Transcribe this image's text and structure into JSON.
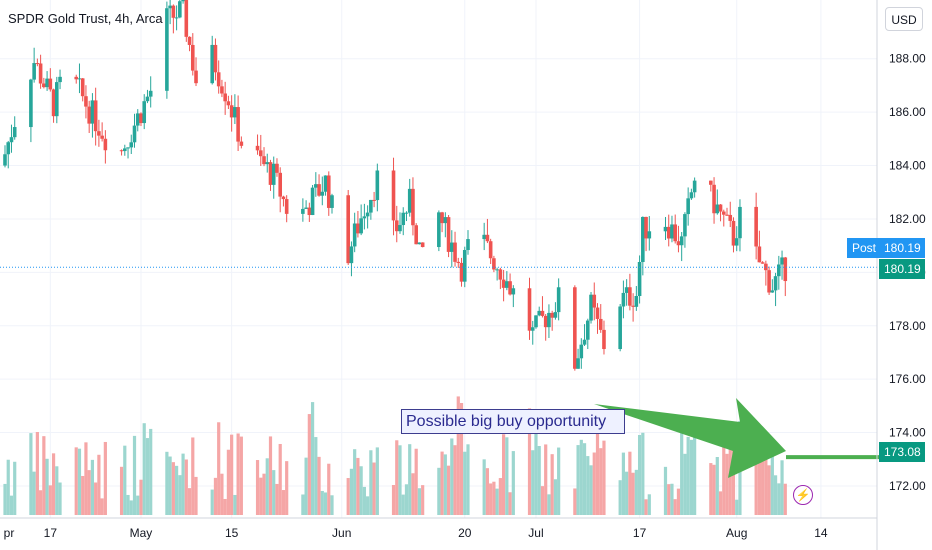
{
  "symbol_title": "SPDR Gold Trust, 4h, Arca",
  "currency_button": "USD",
  "post_label": "Post",
  "post_price": "180.19",
  "last_price": "180.19",
  "arrow_price": "173.08",
  "annotation": "Possible big buy opportunity",
  "colors": {
    "up": "#26a69a",
    "down": "#ef5350",
    "up_volume": "#9cd6cf",
    "down_volume": "#f5a6a6",
    "arrow": "#4caf50",
    "post_tag": "#2196f3",
    "price_tag": "#089981",
    "annotation_border": "#3d3d8f",
    "annotation_text": "#2a2a8f"
  },
  "icon": "lightning-icon",
  "chart_data": {
    "type": "candlestick",
    "title": "SPDR Gold Trust, 4h, Arca",
    "y_axis_ticks": [
      "188.00",
      "186.00",
      "184.00",
      "182.00",
      "180.00",
      "178.00",
      "176.00",
      "174.00",
      "172.00"
    ],
    "x_axis_ticks": [
      "pr",
      "17",
      "May",
      "15",
      "Jun",
      "20",
      "Jul",
      "17",
      "Aug",
      "14"
    ],
    "ylim": [
      170.8,
      190.2
    ],
    "ohlc_keypoints": [
      {
        "date": "Apr 10",
        "close": 184.0
      },
      {
        "date": "Apr 13",
        "close": 186.6
      },
      {
        "date": "Apr 15",
        "close": 187.9
      },
      {
        "date": "Apr 18",
        "close": 186.3
      },
      {
        "date": "Apr 20",
        "close": 187.6
      },
      {
        "date": "Apr 24",
        "close": 185.9
      },
      {
        "date": "Apr 28",
        "close": 184.3
      },
      {
        "date": "May 3",
        "close": 186.8
      },
      {
        "date": "May 5",
        "close": 189.4
      },
      {
        "date": "May 8",
        "close": 189.8
      },
      {
        "date": "May 10",
        "close": 187.2
      },
      {
        "date": "May 12",
        "close": 188.4
      },
      {
        "date": "May 15",
        "close": 186.5
      },
      {
        "date": "May 17",
        "close": 184.9
      },
      {
        "date": "May 22",
        "close": 183.6
      },
      {
        "date": "May 25",
        "close": 181.8
      },
      {
        "date": "May 30",
        "close": 183.4
      },
      {
        "date": "Jun 2",
        "close": 180.4
      },
      {
        "date": "Jun 5",
        "close": 182.4
      },
      {
        "date": "Jun 7",
        "close": 183.5
      },
      {
        "date": "Jun 9",
        "close": 181.2
      },
      {
        "date": "Jun 12",
        "close": 182.6
      },
      {
        "date": "Jun 14",
        "close": 180.4
      },
      {
        "date": "Jun 16",
        "close": 182.4
      },
      {
        "date": "Jun 20",
        "close": 180.2
      },
      {
        "date": "Jun 22",
        "close": 181.6
      },
      {
        "date": "Jun 26",
        "close": 180.1
      },
      {
        "date": "Jun 29",
        "close": 178.8
      },
      {
        "date": "Jul 1",
        "close": 177.7
      },
      {
        "date": "Jul 5",
        "close": 179.0
      },
      {
        "date": "Jul 6",
        "close": 177.0
      },
      {
        "date": "Jul 7",
        "close": 176.2
      },
      {
        "date": "Jul 10",
        "close": 178.7
      },
      {
        "date": "Jul 12",
        "close": 177.3
      },
      {
        "date": "Jul 14",
        "close": 178.9
      },
      {
        "date": "Jul 17",
        "close": 179.2
      },
      {
        "date": "Jul 18",
        "close": 181.6
      },
      {
        "date": "Jul 21",
        "close": 182.1
      },
      {
        "date": "Jul 24",
        "close": 181.1
      },
      {
        "date": "Jul 26",
        "close": 183.6
      },
      {
        "date": "Jul 29",
        "close": 182.6
      },
      {
        "date": "Aug 1",
        "close": 181.3
      },
      {
        "date": "Aug 3",
        "close": 182.8
      },
      {
        "date": "Aug 4",
        "close": 180.8
      },
      {
        "date": "Aug 7",
        "close": 179.5
      },
      {
        "date": "Aug 9",
        "close": 180.19
      }
    ],
    "price_lines": {
      "last": 180.19,
      "arrow_target": 173.08
    },
    "volume": "histogram at bottom, teal for up bars and red for down bars, no volume scale printed",
    "grid": true,
    "price_axis_side": "right"
  }
}
